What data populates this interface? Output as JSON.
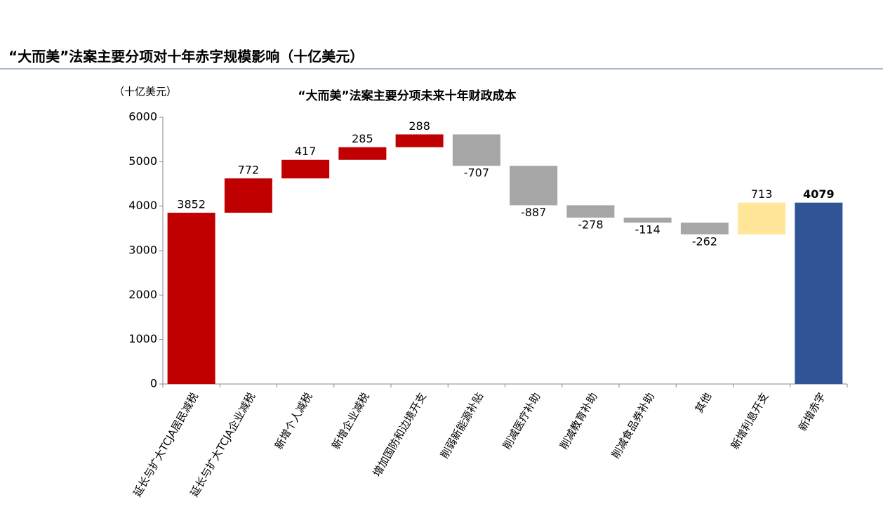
{
  "header": {
    "title": "“大而美”法案主要分项对十年赤字规模影响（十亿美元）"
  },
  "chart_data": {
    "type": "waterfall",
    "title": "“大而美”法案主要分项未来十年财政成本",
    "unit_label": "（十亿美元）",
    "categories": [
      "延长与扩大TCJA居民减税",
      "延长与扩大TCJA企业减税",
      "新增个人减税",
      "新增企业减税",
      "增加国防和边境开支",
      "削弱新能源补贴",
      "削减医疗补助",
      "削减教育补助",
      "削减食品券补助",
      "其他",
      "新增利息开支",
      "新增赤字"
    ],
    "values": [
      3852,
      772,
      417,
      285,
      288,
      -707,
      -887,
      -278,
      -114,
      -262,
      713,
      4079
    ],
    "measure": [
      "relative",
      "relative",
      "relative",
      "relative",
      "relative",
      "relative",
      "relative",
      "relative",
      "relative",
      "relative",
      "relative",
      "total"
    ],
    "colors": [
      "#c00000",
      "#c00000",
      "#c00000",
      "#c00000",
      "#c00000",
      "#a6a6a6",
      "#a6a6a6",
      "#a6a6a6",
      "#a6a6a6",
      "#a6a6a6",
      "#ffe699",
      "#2f5597"
    ],
    "ylim": [
      0,
      6000
    ],
    "yticks": [
      0,
      1000,
      2000,
      3000,
      4000,
      5000,
      6000
    ],
    "grid": false
  }
}
